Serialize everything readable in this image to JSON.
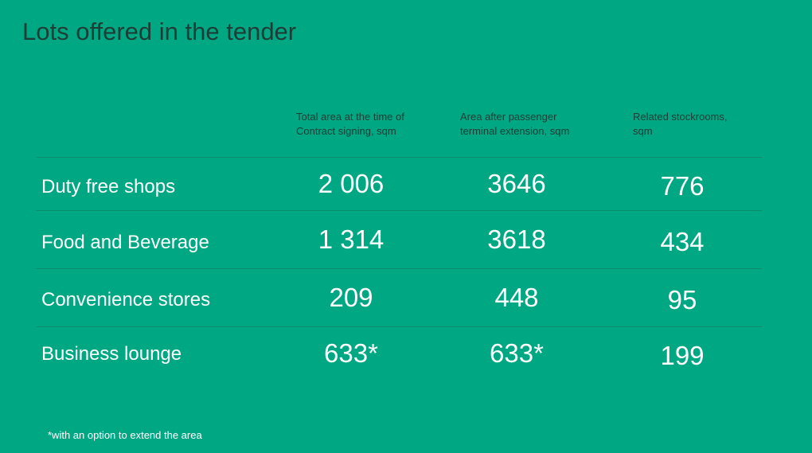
{
  "title": "Lots offered in the tender",
  "table": {
    "headers": [
      "Total area at the time of Contract signing, sqm",
      "Area after passenger terminal extension, sqm",
      "Related stockrooms, sqm"
    ],
    "rows": [
      [
        "Duty free shops",
        "2 006",
        "3646",
        "776"
      ],
      [
        "Food and Beverage",
        "1 314",
        "3618",
        "434"
      ],
      [
        "Convenience stores",
        "209",
        "448",
        "95"
      ],
      [
        "Business lounge",
        "633*",
        "633*",
        "199"
      ]
    ]
  },
  "footnote": "*with an option to extend the area"
}
